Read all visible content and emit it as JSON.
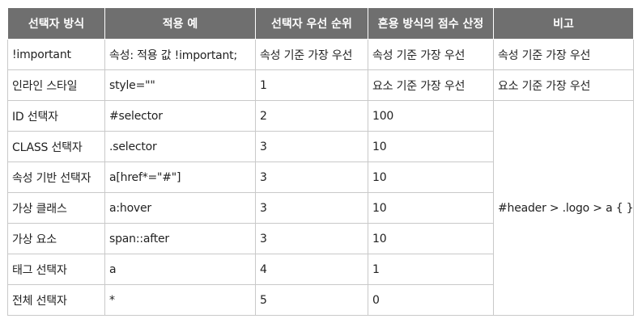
{
  "table": {
    "headers": [
      "선택자 방식",
      "적용 예",
      "선택자 우선 순위",
      "혼용 방식의 점수 산정",
      "비고"
    ],
    "rows": [
      {
        "method": "!important",
        "example": "속성: 적용 값 !important;",
        "priority": "속성 기준 가장 우선",
        "score": "속성 기준 가장 우선",
        "note": "속성 기준 가장 우선"
      },
      {
        "method": "인라인 스타일",
        "example": "style=\"\"",
        "priority": "1",
        "score": "요소 기준 가장 우선",
        "note": "요소 기준 가장 우선"
      },
      {
        "method": "ID 선택자",
        "example": "#selector",
        "priority": "2",
        "score": "100"
      },
      {
        "method": "CLASS 선택자",
        "example": ".selector",
        "priority": "3",
        "score": "10"
      },
      {
        "method": "속성 기반 선택자",
        "example": "a[href*=\"#\"]",
        "priority": "3",
        "score": "10"
      },
      {
        "method": "가상 클래스",
        "example": "a:hover",
        "priority": "3",
        "score": "10"
      },
      {
        "method": "가상 요소",
        "example": "span::after",
        "priority": "3",
        "score": "10"
      },
      {
        "method": "태그 선택자",
        "example": "a",
        "priority": "4",
        "score": "1"
      },
      {
        "method": "전체 선택자",
        "example": "*",
        "priority": "5",
        "score": "0"
      }
    ],
    "merged_note": "#header > .logo > a { }"
  }
}
